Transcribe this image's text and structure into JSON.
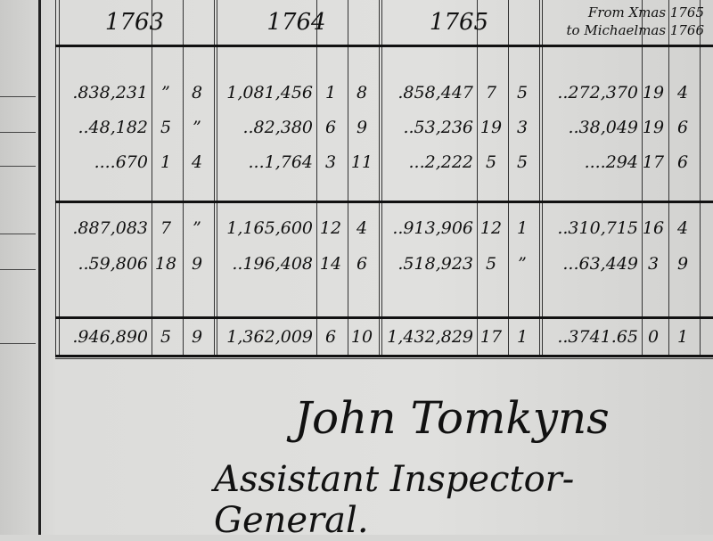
{
  "headers": {
    "years": [
      "1763",
      "1764",
      "1765"
    ],
    "period_line1": "From Xmas 1765",
    "period_line2": "to Michaelmas 1766"
  },
  "rows": [
    [
      ".838,231",
      "”",
      "8",
      "1,081,456",
      "1",
      "8",
      ".858,447",
      "7",
      "5",
      "..272,370",
      "19",
      "4"
    ],
    [
      "..48,182",
      "5",
      "”",
      "..82,380",
      "6",
      "9",
      "..53,236",
      "19",
      "3",
      "..38,049",
      "19",
      "6"
    ],
    [
      "....670",
      "1",
      "4",
      "...1,764",
      "3",
      "11",
      "...2,222",
      "5",
      "5",
      "....294",
      "17",
      "6"
    ],
    [
      ".887,083",
      "7",
      "”",
      "1,165,600",
      "12",
      "4",
      "..913,906",
      "12",
      "1",
      "..310,715",
      "16",
      "4"
    ],
    [
      "..59,806",
      "18",
      "9",
      "..196,408",
      "14",
      "6",
      ".518,923",
      "5",
      "”",
      "...63,449",
      "3",
      "9"
    ],
    [
      ".946,890",
      "5",
      "9",
      "1,362,009",
      "6",
      "10",
      "1,432,829",
      "17",
      "1",
      "..3741.65",
      "0",
      "1"
    ]
  ],
  "signature": {
    "name": "John Tomkyns",
    "title": "Assistant Inspector-General."
  }
}
